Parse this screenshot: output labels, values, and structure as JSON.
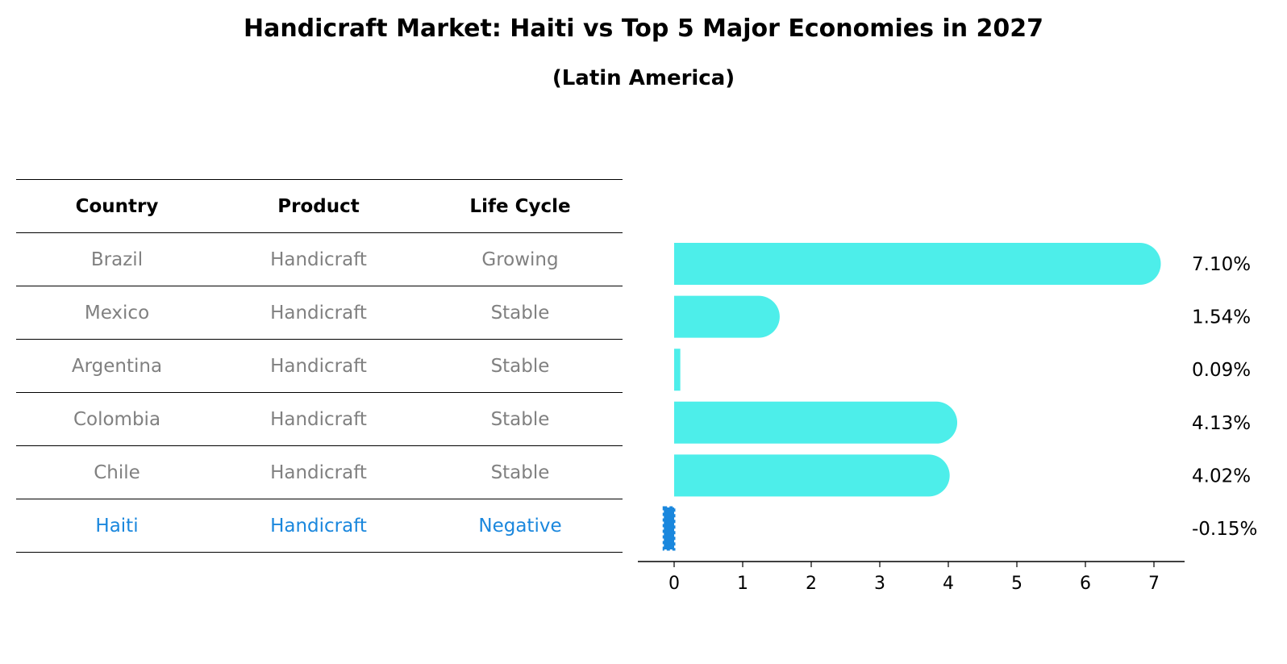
{
  "chart_data": {
    "type": "bar",
    "orientation": "horizontal",
    "title": "Handicraft Market: Haiti vs Top 5 Major Economies in 2027",
    "subtitle": "(Latin America)",
    "categories": [
      "Brazil",
      "Mexico",
      "Argentina",
      "Colombia",
      "Chile",
      "Haiti"
    ],
    "values": [
      7.1,
      1.54,
      0.09,
      4.13,
      4.02,
      -0.15
    ],
    "value_labels": [
      "7.10%",
      "1.54%",
      "0.09%",
      "4.13%",
      "4.02%",
      "-0.15%"
    ],
    "xlim": [
      -0.5,
      7.5
    ],
    "xticks": [
      "0",
      "1",
      "2",
      "3",
      "4",
      "5",
      "6",
      "7"
    ],
    "xlabel": "",
    "ylabel": "",
    "colors": {
      "default": "#4deeea",
      "highlight": "#1a87dd"
    }
  },
  "table": {
    "headers": [
      "Country",
      "Product",
      "Life Cycle"
    ],
    "rows": [
      [
        "Brazil",
        "Handicraft",
        "Growing"
      ],
      [
        "Mexico",
        "Handicraft",
        "Stable"
      ],
      [
        "Argentina",
        "Handicraft",
        "Stable"
      ],
      [
        "Colombia",
        "Handicraft",
        "Stable"
      ],
      [
        "Chile",
        "Handicraft",
        "Stable"
      ],
      [
        "Haiti",
        "Handicraft",
        "Negative"
      ]
    ],
    "highlight_row": 5
  }
}
